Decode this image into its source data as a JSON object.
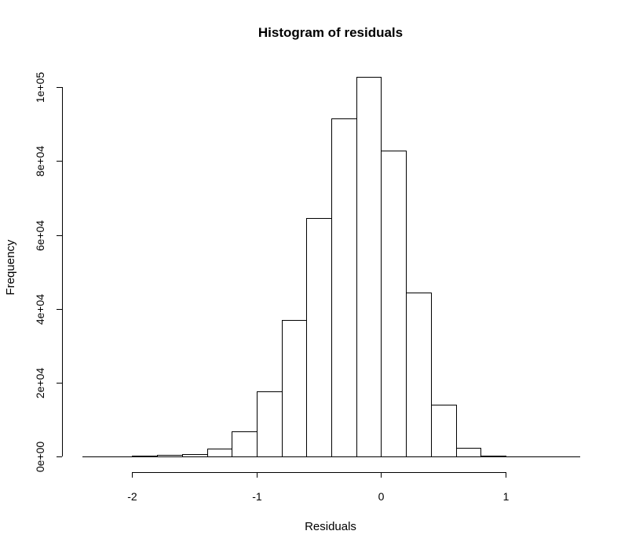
{
  "chart_data": {
    "type": "bar",
    "title": "Histogram of residuals",
    "xlabel": "Residuals",
    "ylabel": "Frequency",
    "bin_edges": [
      -2.4,
      -2.2,
      -2.0,
      -1.8,
      -1.6,
      -1.4,
      -1.2,
      -1.0,
      -0.8,
      -0.6,
      -0.4,
      -0.2,
      0.0,
      0.2,
      0.4,
      0.6,
      0.8,
      1.0,
      1.2,
      1.4,
      1.6
    ],
    "values": [
      30,
      80,
      200,
      400,
      700,
      2200,
      6700,
      17600,
      37000,
      64600,
      91500,
      102800,
      82800,
      44300,
      14000,
      2400,
      300,
      60,
      10,
      0
    ],
    "xlim": [
      -2.4,
      1.6
    ],
    "ylim": [
      0,
      102800
    ],
    "x_ticks": [
      -2,
      -1,
      0,
      1
    ],
    "x_tick_labels": [
      "-2",
      "-1",
      "0",
      "1"
    ],
    "y_ticks": [
      0,
      20000,
      40000,
      60000,
      80000,
      100000
    ],
    "y_tick_labels": [
      "0e+00",
      "2e+04",
      "4e+04",
      "6e+04",
      "8e+04",
      "1e+05"
    ],
    "grid": false,
    "legend": "none",
    "bar_fill": "#ffffff",
    "bar_stroke": "#000000"
  }
}
